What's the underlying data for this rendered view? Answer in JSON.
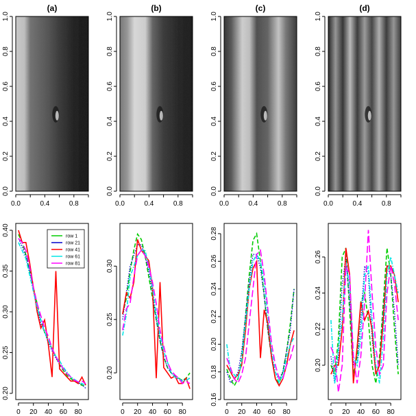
{
  "chart_data": [
    {
      "type": "image",
      "title": "(a)",
      "xlim": [
        0,
        1
      ],
      "ylim": [
        0,
        1
      ],
      "xticks": [
        0,
        0.2,
        0.4,
        0.6,
        0.8,
        1.0
      ],
      "xtick_labels": [
        "0.0",
        "",
        "0.4",
        "",
        "0.8",
        ""
      ],
      "yticks": [
        0,
        0.2,
        0.4,
        0.6,
        0.8,
        1.0
      ],
      "ytick_labels": [
        "0.0",
        "0.2",
        "0.4",
        "0.6",
        "0.8",
        "1.0"
      ]
    },
    {
      "type": "image",
      "title": "(b)",
      "xlim": [
        0,
        1
      ],
      "ylim": [
        0,
        1
      ],
      "xticks": [
        0,
        0.2,
        0.4,
        0.6,
        0.8,
        1.0
      ],
      "xtick_labels": [
        "0.0",
        "",
        "0.4",
        "",
        "0.8",
        ""
      ],
      "yticks": [
        0,
        0.2,
        0.4,
        0.6,
        0.8,
        1.0
      ],
      "ytick_labels": [
        "0.0",
        "0.2",
        "0.4",
        "0.6",
        "0.8",
        "1.0"
      ]
    },
    {
      "type": "image",
      "title": "(c)",
      "xlim": [
        0,
        1
      ],
      "ylim": [
        0,
        1
      ],
      "xticks": [
        0,
        0.2,
        0.4,
        0.6,
        0.8,
        1.0
      ],
      "xtick_labels": [
        "0.0",
        "",
        "0.4",
        "",
        "0.8",
        ""
      ],
      "yticks": [
        0,
        0.2,
        0.4,
        0.6,
        0.8,
        1.0
      ],
      "ytick_labels": [
        "0.0",
        "0.2",
        "0.4",
        "0.6",
        "0.8",
        "1.0"
      ]
    },
    {
      "type": "image",
      "title": "(d)",
      "xlim": [
        0,
        1
      ],
      "ylim": [
        0,
        1
      ],
      "xticks": [
        0,
        0.2,
        0.4,
        0.6,
        0.8,
        1.0
      ],
      "xtick_labels": [
        "0.0",
        "",
        "0.4",
        "",
        "0.8",
        ""
      ],
      "yticks": [
        0,
        0.2,
        0.4,
        0.6,
        0.8,
        1.0
      ],
      "ytick_labels": [
        "0.0",
        "0.2",
        "0.4",
        "0.6",
        "0.8",
        "1.0"
      ]
    },
    {
      "type": "line",
      "x": [
        0,
        5,
        10,
        15,
        20,
        25,
        30,
        35,
        40,
        45,
        50,
        55,
        60,
        65,
        70,
        75,
        80,
        85,
        90
      ],
      "xlim": [
        -3.6,
        93.6
      ],
      "ylim": [
        0.1924,
        0.4084
      ],
      "xticks": [
        0,
        20,
        40,
        60,
        80
      ],
      "yticks": [
        0.2,
        0.25,
        0.3,
        0.35,
        0.4
      ],
      "ytick_labels": [
        "0.20",
        "0.25",
        "0.30",
        "0.35",
        "0.40"
      ],
      "legend": "top-right",
      "series": [
        {
          "name": "row 1",
          "color": "#00cc00",
          "values": [
            0.395,
            0.385,
            0.37,
            0.35,
            0.33,
            0.31,
            0.29,
            0.275,
            0.265,
            0.255,
            0.245,
            0.235,
            0.228,
            0.222,
            0.218,
            0.215,
            0.212,
            0.21,
            0.208
          ]
        },
        {
          "name": "row 21",
          "color": "#0000cc",
          "values": [
            0.39,
            0.38,
            0.368,
            0.35,
            0.328,
            0.305,
            0.285,
            0.275,
            0.262,
            0.252,
            0.243,
            0.236,
            0.23,
            0.225,
            0.22,
            0.216,
            0.213,
            0.211,
            0.206
          ]
        },
        {
          "name": "row 41",
          "color": "#ff0000",
          "values": [
            0.4,
            0.385,
            0.385,
            0.36,
            0.33,
            0.3,
            0.28,
            0.29,
            0.26,
            0.22,
            0.35,
            0.23,
            0.225,
            0.22,
            0.215,
            0.215,
            0.212,
            0.22,
            0.21
          ]
        },
        {
          "name": "row 61",
          "color": "#00e5e5",
          "values": [
            0.385,
            0.375,
            0.365,
            0.345,
            0.325,
            0.305,
            0.29,
            0.275,
            0.265,
            0.255,
            0.245,
            0.24,
            0.232,
            0.226,
            0.22,
            0.217,
            0.214,
            0.212,
            0.21
          ]
        },
        {
          "name": "row 81",
          "color": "#ff00ff",
          "values": [
            0.39,
            0.385,
            0.375,
            0.355,
            0.33,
            0.31,
            0.295,
            0.28,
            0.27,
            0.255,
            0.245,
            0.237,
            0.23,
            0.224,
            0.22,
            0.216,
            0.214,
            0.215,
            0.212
          ]
        }
      ]
    },
    {
      "type": "line",
      "x": [
        0,
        5,
        10,
        15,
        20,
        25,
        30,
        35,
        40,
        45,
        50,
        55,
        60,
        65,
        70,
        75,
        80,
        85,
        90
      ],
      "xlim": [
        -3.6,
        93.6
      ],
      "ylim": [
        0.175,
        0.34
      ],
      "xticks": [
        0,
        20,
        40,
        60,
        80
      ],
      "yticks": [
        0.2,
        0.25,
        0.3
      ],
      "ytick_labels": [
        "0.20",
        "0.25",
        "0.30"
      ],
      "series": [
        {
          "name": "row 1",
          "color": "#00cc00",
          "values": [
            0.255,
            0.27,
            0.295,
            0.315,
            0.33,
            0.325,
            0.31,
            0.29,
            0.27,
            0.25,
            0.23,
            0.215,
            0.205,
            0.2,
            0.197,
            0.195,
            0.193,
            0.195,
            0.2
          ]
        },
        {
          "name": "row 21",
          "color": "#0000cc",
          "values": [
            0.25,
            0.275,
            0.3,
            0.31,
            0.32,
            0.32,
            0.31,
            0.295,
            0.275,
            0.25,
            0.23,
            0.215,
            0.205,
            0.2,
            0.196,
            0.194,
            0.193,
            0.194,
            0.195
          ]
        },
        {
          "name": "row 41",
          "color": "#ff0000",
          "values": [
            0.255,
            0.275,
            0.27,
            0.285,
            0.325,
            0.315,
            0.31,
            0.305,
            0.28,
            0.195,
            0.285,
            0.205,
            0.2,
            0.195,
            0.197,
            0.19,
            0.19,
            0.195,
            0.185
          ]
        },
        {
          "name": "row 61",
          "color": "#00e5e5",
          "values": [
            0.235,
            0.255,
            0.29,
            0.3,
            0.31,
            0.315,
            0.315,
            0.3,
            0.28,
            0.255,
            0.235,
            0.22,
            0.21,
            0.2,
            0.196,
            0.195,
            0.192,
            0.193,
            0.195
          ]
        },
        {
          "name": "row 81",
          "color": "#ff00ff",
          "values": [
            0.24,
            0.26,
            0.265,
            0.29,
            0.31,
            0.315,
            0.31,
            0.3,
            0.285,
            0.265,
            0.24,
            0.225,
            0.21,
            0.202,
            0.198,
            0.195,
            0.19,
            0.192,
            0.19
          ]
        }
      ]
    },
    {
      "type": "line",
      "x": [
        0,
        5,
        10,
        15,
        20,
        25,
        30,
        35,
        40,
        45,
        50,
        55,
        60,
        65,
        70,
        75,
        80,
        85,
        90
      ],
      "xlim": [
        -3.6,
        93.6
      ],
      "ylim": [
        0.16,
        0.2874
      ],
      "xticks": [
        0,
        20,
        40,
        60,
        80
      ],
      "yticks": [
        0.16,
        0.18,
        0.2,
        0.22,
        0.24,
        0.26,
        0.28
      ],
      "ytick_labels": [
        "0.16",
        "0.18",
        "0.20",
        "0.22",
        "0.24",
        "0.26",
        "0.28"
      ],
      "series": [
        {
          "name": "row 1",
          "color": "#00cc00",
          "values": [
            0.182,
            0.175,
            0.17,
            0.175,
            0.19,
            0.22,
            0.25,
            0.275,
            0.28,
            0.26,
            0.235,
            0.21,
            0.19,
            0.175,
            0.172,
            0.18,
            0.195,
            0.215,
            0.24
          ]
        },
        {
          "name": "row 21",
          "color": "#0000cc",
          "values": [
            0.18,
            0.172,
            0.175,
            0.18,
            0.195,
            0.22,
            0.245,
            0.265,
            0.265,
            0.255,
            0.235,
            0.21,
            0.19,
            0.18,
            0.175,
            0.18,
            0.195,
            0.21,
            0.24
          ]
        },
        {
          "name": "row 41",
          "color": "#ff0000",
          "values": [
            0.185,
            0.18,
            0.175,
            0.178,
            0.185,
            0.21,
            0.24,
            0.255,
            0.26,
            0.19,
            0.225,
            0.215,
            0.19,
            0.175,
            0.17,
            0.175,
            0.185,
            0.2,
            0.21
          ]
        },
        {
          "name": "row 61",
          "color": "#00e5e5",
          "values": [
            0.2,
            0.18,
            0.178,
            0.175,
            0.188,
            0.215,
            0.24,
            0.26,
            0.265,
            0.26,
            0.245,
            0.22,
            0.195,
            0.18,
            0.172,
            0.178,
            0.19,
            0.2,
            0.205
          ]
        },
        {
          "name": "row 81",
          "color": "#ff00ff",
          "values": [
            0.19,
            0.183,
            0.175,
            0.172,
            0.178,
            0.19,
            0.215,
            0.24,
            0.265,
            0.268,
            0.25,
            0.225,
            0.2,
            0.185,
            0.175,
            0.175,
            0.185,
            0.19,
            0.2
          ]
        }
      ]
    },
    {
      "type": "line",
      "x": [
        0,
        5,
        10,
        15,
        20,
        25,
        30,
        35,
        40,
        45,
        50,
        55,
        60,
        65,
        70,
        75,
        80,
        85,
        90
      ],
      "xlim": [
        -3.6,
        93.6
      ],
      "ylim": [
        0.181,
        0.2786
      ],
      "xticks": [
        0,
        20,
        40,
        60,
        80
      ],
      "yticks": [
        0.2,
        0.22,
        0.24,
        0.26
      ],
      "ytick_labels": [
        "0.20",
        "0.22",
        "0.24",
        "0.26"
      ],
      "series": [
        {
          "name": "row 1",
          "color": "#00cc00",
          "values": [
            0.2,
            0.195,
            0.215,
            0.26,
            0.265,
            0.23,
            0.195,
            0.205,
            0.235,
            0.24,
            0.225,
            0.2,
            0.19,
            0.205,
            0.235,
            0.265,
            0.25,
            0.22,
            0.195
          ]
        },
        {
          "name": "row 21",
          "color": "#0000cc",
          "values": [
            0.205,
            0.19,
            0.205,
            0.245,
            0.26,
            0.235,
            0.2,
            0.2,
            0.225,
            0.255,
            0.25,
            0.215,
            0.195,
            0.2,
            0.23,
            0.255,
            0.25,
            0.23,
            0.2
          ]
        },
        {
          "name": "row 41",
          "color": "#ff0000",
          "values": [
            0.195,
            0.2,
            0.2,
            0.22,
            0.265,
            0.25,
            0.19,
            0.21,
            0.235,
            0.225,
            0.23,
            0.22,
            0.195,
            0.2,
            0.225,
            0.255,
            0.255,
            0.25,
            0.235
          ]
        },
        {
          "name": "row 61",
          "color": "#00e5e5",
          "values": [
            0.225,
            0.19,
            0.21,
            0.225,
            0.255,
            0.245,
            0.205,
            0.2,
            0.215,
            0.25,
            0.255,
            0.225,
            0.2,
            0.19,
            0.215,
            0.25,
            0.26,
            0.25,
            0.24
          ]
        },
        {
          "name": "row 81",
          "color": "#ff00ff",
          "values": [
            0.21,
            0.205,
            0.185,
            0.2,
            0.255,
            0.25,
            0.205,
            0.19,
            0.205,
            0.235,
            0.275,
            0.24,
            0.21,
            0.195,
            0.2,
            0.24,
            0.255,
            0.245,
            0.225
          ]
        }
      ]
    }
  ]
}
